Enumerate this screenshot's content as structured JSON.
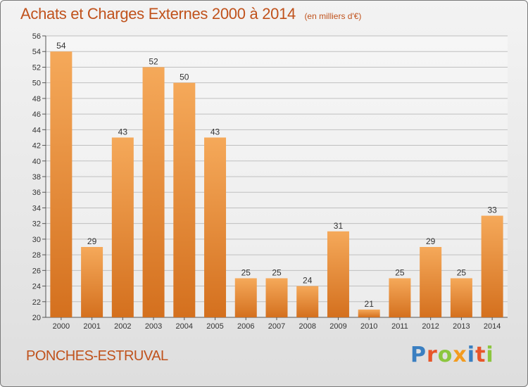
{
  "header": {
    "title": "Achats et Charges Externes 2000 à 2014",
    "subtitle": "(en milliers d'€)"
  },
  "footer": {
    "commune": "PONCHES-ESTRUVAL",
    "brand_letters": [
      "P",
      "r",
      "o",
      "x",
      "i",
      "t",
      "i"
    ],
    "brand_colors": [
      "#3a7fc1",
      "#e8562a",
      "#8cc63f",
      "#f39c1f",
      "#3a7fc1",
      "#e8562a",
      "#8cc63f"
    ]
  },
  "colors": {
    "title": "#c0521c",
    "bar_light": "#f5a95a",
    "bar_dark": "#d4701e",
    "grid": "#bfbfbf"
  },
  "chart_data": {
    "type": "bar",
    "title": "Achats et Charges Externes 2000 à 2014",
    "subtitle": "(en milliers d'€)",
    "categories": [
      "2000",
      "2001",
      "2002",
      "2003",
      "2004",
      "2005",
      "2006",
      "2007",
      "2008",
      "2009",
      "2010",
      "2011",
      "2012",
      "2013",
      "2014"
    ],
    "values": [
      54,
      29,
      43,
      52,
      50,
      43,
      25,
      25,
      24,
      31,
      21,
      25,
      29,
      25,
      33
    ],
    "ylim": [
      20,
      56
    ],
    "ytick_step": 2,
    "grid": true,
    "xlabel": "",
    "ylabel": ""
  }
}
